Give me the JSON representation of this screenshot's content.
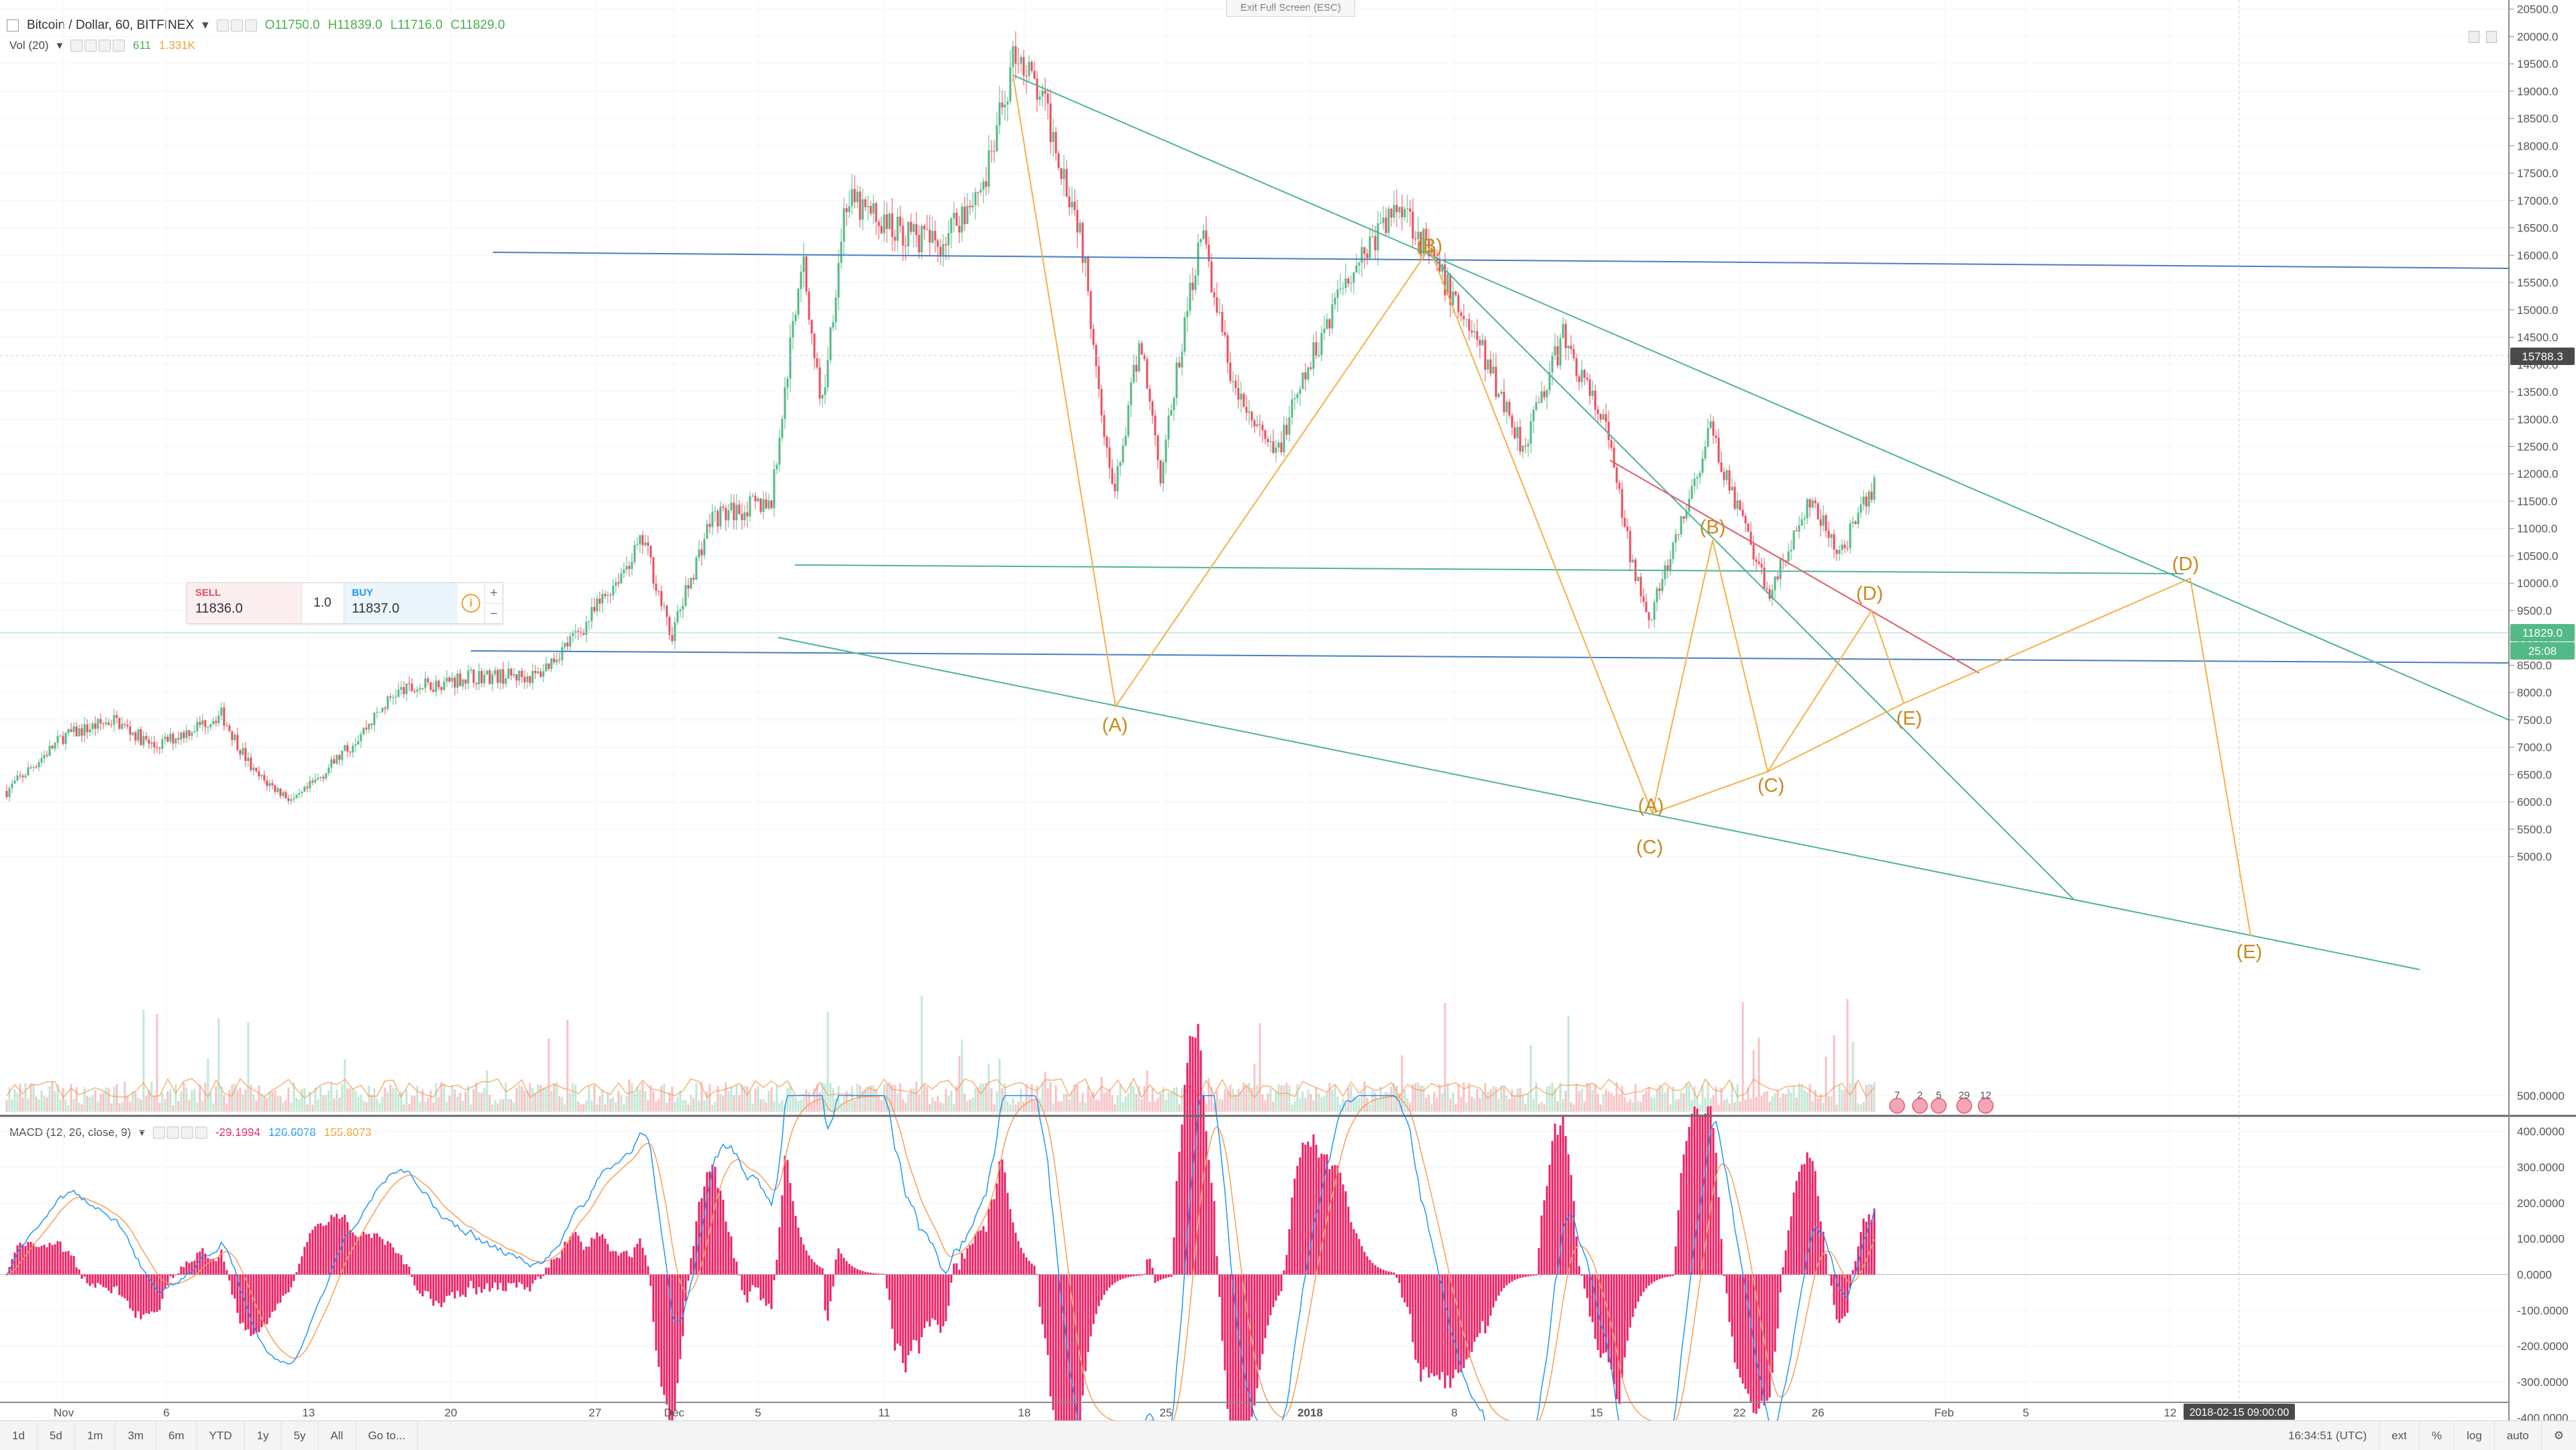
{
  "toolbar": {
    "exit_fullscreen": "Exit Full Screen (ESC)"
  },
  "legend_main": {
    "symbol": "Bitcoin / Dollar, 60, BITFINEX",
    "open": "O11750.0",
    "high": "H11839.0",
    "low": "L11716.0",
    "close": "C11829.0"
  },
  "legend_vol": {
    "name": "Vol (20)",
    "value": "611",
    "ma": "1.331K"
  },
  "legend_macd": {
    "name": "MACD (12, 26, close, 9)",
    "hist": "-29.1994",
    "macd": "126.6078",
    "signal": "155.8073"
  },
  "trade": {
    "sell_label": "SELL",
    "sell_price": "11836.0",
    "qty": "1.0",
    "buy_label": "BUY",
    "buy_price": "11837.0",
    "info": "i",
    "plus": "+",
    "minus": "−"
  },
  "price_axis": {
    "ticks": [
      "20500.0",
      "20000.0",
      "19500.0",
      "19000.0",
      "18500.0",
      "18000.0",
      "17500.0",
      "17000.0",
      "16500.0",
      "16000.0",
      "15500.0",
      "15000.0",
      "14500.0",
      "14000.0",
      "13500.0",
      "13000.0",
      "12500.0",
      "12000.0",
      "11500.0",
      "11000.0",
      "10500.0",
      "10000.0",
      "9500.0",
      "9000.0",
      "8500.0",
      "8000.0",
      "7500.0",
      "7000.0",
      "6500.0",
      "6000.0",
      "5500.0",
      "5000.0"
    ],
    "last_price": "11829.0",
    "countdown": "25:08",
    "crosshair_price": "15788.3"
  },
  "macd_axis": {
    "ticks": [
      "500.0000",
      "400.0000",
      "300.0000",
      "200.0000",
      "100.0000",
      "0.0000",
      "-100.0000",
      "-200.0000",
      "-300.0000",
      "-400.0000"
    ]
  },
  "time_axis": {
    "ticks": [
      "Nov",
      "6",
      "13",
      "20",
      "27",
      "Dec",
      "5",
      "11",
      "18",
      "25",
      "2018",
      "8",
      "15",
      "22",
      "26",
      "Feb",
      "5",
      "12"
    ],
    "crosshair_time": "2018-02-15 09:00:00"
  },
  "wave_labels": [
    "(A)",
    "(B)",
    "(A)",
    "(C)",
    "(B)",
    "(C)",
    "(D)",
    "(E)",
    "(D)",
    "(E)"
  ],
  "events": [
    "7",
    "2",
    "5",
    "29",
    "12"
  ],
  "bottom_bar": {
    "timeframes": [
      "1d",
      "5d",
      "1m",
      "3m",
      "6m",
      "YTD",
      "1y",
      "5y",
      "All",
      "Go to..."
    ],
    "clock": "16:34:51 (UTC)",
    "options": [
      "ext",
      "%",
      "log",
      "auto"
    ]
  },
  "colors": {
    "up": "#53b987",
    "down": "#eb4d5c",
    "blue_line": "#4a7fc1",
    "teal_line": "#4fb39a",
    "wave": "#f5b04a",
    "red_line": "#e05a6a",
    "macd": "#2196f3",
    "signal": "#f5a05a",
    "hist": "#e91e63"
  }
}
